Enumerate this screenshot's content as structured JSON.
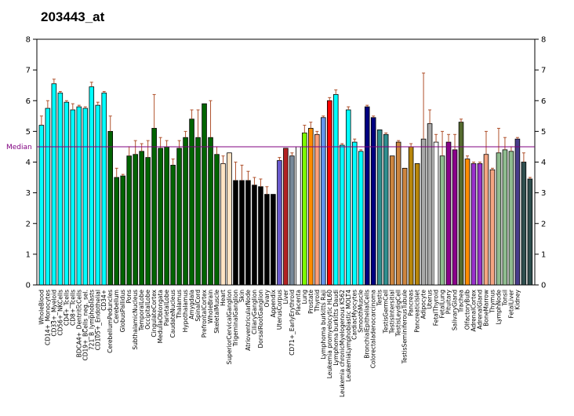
{
  "chart_data": {
    "type": "bar",
    "title": "203443_at",
    "ylim": [
      0,
      8
    ],
    "yticks": [
      0,
      1,
      2,
      3,
      4,
      5,
      6,
      7,
      8
    ],
    "median": {
      "label": "Median",
      "value": 4.5,
      "color": "#800080"
    },
    "error_bar_color": "#b0522d",
    "grid": false,
    "bars": [
      {
        "label": "WholeBlood",
        "value": 5.2,
        "err": 5.5,
        "color": "#00ffff"
      },
      {
        "label": "CD14+_Monocytes",
        "value": 5.75,
        "err": 6.0,
        "color": "#00ffff"
      },
      {
        "label": "CD33+_Myeloid",
        "value": 6.55,
        "err": 6.7,
        "color": "#00ffff"
      },
      {
        "label": "CD56+_NKCells",
        "value": 6.25,
        "err": 6.3,
        "color": "#00ffff"
      },
      {
        "label": "CD4+_Tcells",
        "value": 5.95,
        "err": 6.0,
        "color": "#00ffff"
      },
      {
        "label": "CD8+_Tcells",
        "value": 5.7,
        "err": 5.9,
        "color": "#00ffff"
      },
      {
        "label": "BDCA4+_DentriticCells",
        "value": 5.8,
        "err": 5.85,
        "color": "#00ffff"
      },
      {
        "label": "CD19+_BCells_neg._sel.",
        "value": 5.75,
        "err": 5.8,
        "color": "#00ffff"
      },
      {
        "label": "721_B_lymphoblasts",
        "value": 6.45,
        "err": 6.6,
        "color": "#00ffff"
      },
      {
        "label": "CD105+_Endothelial",
        "value": 5.85,
        "err": 5.95,
        "color": "#00ffff"
      },
      {
        "label": "CD34+",
        "value": 6.25,
        "err": 6.3,
        "color": "#00ffff"
      },
      {
        "label": "CerebellumPeduncles",
        "value": 5.0,
        "err": 5.5,
        "color": "#006400"
      },
      {
        "label": "Cerebellum",
        "value": 3.5,
        "err": 3.8,
        "color": "#006400"
      },
      {
        "label": "GlobusPallidus",
        "value": 3.55,
        "err": 3.6,
        "color": "#006400"
      },
      {
        "label": "Pons",
        "value": 4.2,
        "err": 4.5,
        "color": "#006400"
      },
      {
        "label": "SubthalamicNucleus",
        "value": 4.25,
        "err": 4.7,
        "color": "#006400"
      },
      {
        "label": "TemporalLobe",
        "value": 4.35,
        "err": 4.6,
        "color": "#006400"
      },
      {
        "label": "OccipitalLobe",
        "value": 4.15,
        "err": 4.7,
        "color": "#006400"
      },
      {
        "label": "CingulateCortex",
        "value": 5.1,
        "err": 6.2,
        "color": "#006400"
      },
      {
        "label": "MedullaOblongata",
        "value": 4.45,
        "err": 4.8,
        "color": "#006400"
      },
      {
        "label": "ParietalLobe",
        "value": 4.5,
        "err": 4.7,
        "color": "#006400"
      },
      {
        "label": "CaudateNucleus",
        "value": 3.9,
        "err": 4.1,
        "color": "#006400"
      },
      {
        "label": "Thalamus",
        "value": 4.45,
        "err": 4.7,
        "color": "#006400"
      },
      {
        "label": "Hypothalamus",
        "value": 4.8,
        "err": 5.0,
        "color": "#006400"
      },
      {
        "label": "Amygdala",
        "value": 5.4,
        "err": 5.7,
        "color": "#006400"
      },
      {
        "label": "SpinalCord",
        "value": 4.8,
        "err": 5.7,
        "color": "#006400"
      },
      {
        "label": "PrefrontalCortex",
        "value": 5.9,
        "err": 5.9,
        "color": "#006400"
      },
      {
        "label": "WholeBrain",
        "value": 4.8,
        "err": 6.0,
        "color": "#006400"
      },
      {
        "label": "SkeletalMuscle",
        "value": 4.25,
        "err": 4.5,
        "color": "#006400"
      },
      {
        "label": "Heart",
        "value": 3.95,
        "err": 4.2,
        "color": "#ffe4c4"
      },
      {
        "label": "SuperiorCervicalGanglion",
        "value": 4.3,
        "err": 4.3,
        "color": "#ffe4c4"
      },
      {
        "label": "TrigeminalGanglion",
        "value": 3.4,
        "err": 4.0,
        "color": "#000000"
      },
      {
        "label": "Skin",
        "value": 3.4,
        "err": 3.9,
        "color": "#000000"
      },
      {
        "label": "AtrioventricularNode",
        "value": 3.4,
        "err": 3.7,
        "color": "#000000"
      },
      {
        "label": "CiliaryGanglion",
        "value": 3.25,
        "err": 3.5,
        "color": "#000000"
      },
      {
        "label": "DorsalRootGanglion",
        "value": 3.2,
        "err": 3.45,
        "color": "#000000"
      },
      {
        "label": "Ovary",
        "value": 2.95,
        "err": 3.2,
        "color": "#000000"
      },
      {
        "label": "Appendix",
        "value": 2.95,
        "err": 2.95,
        "color": "#000000"
      },
      {
        "label": "UterusCorpus",
        "value": 4.05,
        "err": 4.15,
        "color": "#6a5acd"
      },
      {
        "label": "Liver",
        "value": 4.45,
        "err": 4.45,
        "color": "#b22222"
      },
      {
        "label": "CD71+_EarlyErythroid",
        "value": 4.2,
        "err": 4.3,
        "color": "#778899"
      },
      {
        "label": "Placenta",
        "value": 4.5,
        "err": 4.5,
        "color": "#ffffff"
      },
      {
        "label": "Lung",
        "value": 4.95,
        "err": 5.2,
        "color": "#7cfc00"
      },
      {
        "label": "Prostate",
        "value": 5.1,
        "err": 5.3,
        "color": "#ff8c00"
      },
      {
        "label": "Thyroid",
        "value": 4.9,
        "err": 5.0,
        "color": "#ffa07a"
      },
      {
        "label": "Lymphoma burkitts Raji",
        "value": 5.45,
        "err": 5.5,
        "color": "#6495ed"
      },
      {
        "label": "Leukemia promyelocytic HL60",
        "value": 6.0,
        "err": 6.1,
        "color": "#ff0000"
      },
      {
        "label": "Lymphoma burkitts Daudi",
        "value": 6.2,
        "err": 6.35,
        "color": "#00ffff"
      },
      {
        "label": "Leukemia chronicMyelogenous K562",
        "value": 4.55,
        "err": 4.6,
        "color": "#00ffff"
      },
      {
        "label": "LeukemiaLymphoblastic MOLT4",
        "value": 5.7,
        "err": 5.8,
        "color": "#00ffff"
      },
      {
        "label": "CardiacMyocytes",
        "value": 4.65,
        "err": 4.75,
        "color": "#00ffff"
      },
      {
        "label": "SmoothMuscle",
        "value": 4.35,
        "err": 4.4,
        "color": "#00ffff"
      },
      {
        "label": "BronchialEpithelialCells",
        "value": 5.8,
        "err": 5.85,
        "color": "#000080"
      },
      {
        "label": "Colorectaladenocarcinoma",
        "value": 5.45,
        "err": 5.5,
        "color": "#000080"
      },
      {
        "label": "Testis",
        "value": 5.05,
        "err": 5.05,
        "color": "#2f8f8f"
      },
      {
        "label": "TestisGermCell",
        "value": 4.9,
        "err": 4.95,
        "color": "#2f8f8f"
      },
      {
        "label": "TestisIntersitial",
        "value": 4.2,
        "err": 4.2,
        "color": "#cd853f"
      },
      {
        "label": "TestisLeydigCell",
        "value": 4.65,
        "err": 4.7,
        "color": "#cd853f"
      },
      {
        "label": "TestisSeminiferousTubule",
        "value": 3.8,
        "err": 3.8,
        "color": "#cd853f"
      },
      {
        "label": "Pancreas",
        "value": 4.5,
        "err": 4.6,
        "color": "#b8860b"
      },
      {
        "label": "PancreaticIslet",
        "value": 3.95,
        "err": 3.95,
        "color": "#b8860b"
      },
      {
        "label": "Adipocyte",
        "value": 4.75,
        "err": 6.9,
        "color": "#a9a9a9"
      },
      {
        "label": "Uterus",
        "value": 5.25,
        "err": 5.7,
        "color": "#a9a9a9"
      },
      {
        "label": "FetalThyroid",
        "value": 4.65,
        "err": 4.9,
        "color": "#ffffff"
      },
      {
        "label": "FetalLung",
        "value": 4.2,
        "err": 5.0,
        "color": "#8fbc8f"
      },
      {
        "label": "Pituitary",
        "value": 4.65,
        "err": 4.9,
        "color": "#8b008b"
      },
      {
        "label": "SalivaryGland",
        "value": 4.4,
        "err": 4.9,
        "color": "#8b008b"
      },
      {
        "label": "Trachea",
        "value": 5.3,
        "err": 5.4,
        "color": "#556b2f"
      },
      {
        "label": "OlfactoryBulb",
        "value": 4.1,
        "err": 4.2,
        "color": "#ff8c00"
      },
      {
        "label": "AdrenalCortex",
        "value": 3.95,
        "err": 4.0,
        "color": "#9932cc"
      },
      {
        "label": "AdrenalGland",
        "value": 3.95,
        "err": 4.0,
        "color": "#9932cc"
      },
      {
        "label": "BoneMarrow",
        "value": 4.25,
        "err": 5.0,
        "color": "#f4a582"
      },
      {
        "label": "Thymus",
        "value": 3.75,
        "err": 3.8,
        "color": "#f4a582"
      },
      {
        "label": "LymphNode",
        "value": 4.3,
        "err": 5.1,
        "color": "#8fbc8f"
      },
      {
        "label": "Tonsil",
        "value": 4.4,
        "err": 4.8,
        "color": "#8fbc8f"
      },
      {
        "label": "FetalLiver",
        "value": 4.35,
        "err": 4.5,
        "color": "#8fbc8f"
      },
      {
        "label": "Kidney",
        "value": 4.75,
        "err": 4.8,
        "color": "#483d8b"
      },
      {
        "label": "",
        "value": 4.0,
        "err": 4.3,
        "color": "#2f4f4f"
      },
      {
        "label": "",
        "value": 3.45,
        "err": 3.5,
        "color": "#2f4f4f"
      }
    ]
  }
}
